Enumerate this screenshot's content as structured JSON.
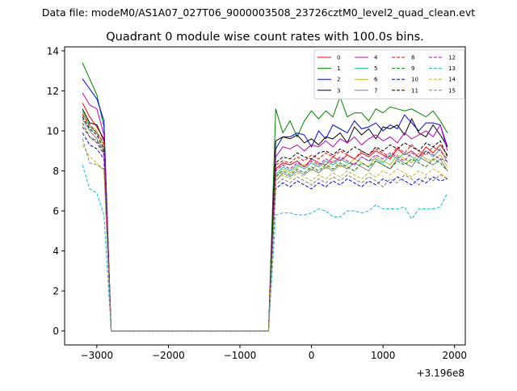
{
  "suptitle": "Data file: modeM0/AS1A07_027T06_9000003508_23726cztM0_level2_quad_clean.evt",
  "chart_data": {
    "type": "line",
    "title": "Quadrant 0 module wise count rates with 100.0s bins.",
    "xlabel": "",
    "ylabel": "",
    "x_offset_label": "+3.196e8",
    "x_offset": 319600000,
    "xlim": [
      -3450,
      2150
    ],
    "ylim": [
      -0.7,
      14.2
    ],
    "xticks": [
      -3000,
      -2000,
      -1000,
      0,
      1000,
      2000
    ],
    "xtick_labels": [
      "−3000",
      "−2000",
      "−1000",
      "0",
      "1000",
      "2000"
    ],
    "yticks": [
      0,
      2,
      4,
      6,
      8,
      10,
      12,
      14
    ],
    "ytick_labels": [
      "0",
      "2",
      "4",
      "6",
      "8",
      "10",
      "12",
      "14"
    ],
    "grid": false,
    "legend": {
      "placement": "top-right",
      "columns": 4
    },
    "x": [
      -3200,
      -3100,
      -3000,
      -2900,
      -2800,
      -2700,
      -2600,
      -2500,
      -2400,
      -2300,
      -2200,
      -2100,
      -2000,
      -1900,
      -1800,
      -1700,
      -1600,
      -1500,
      -1400,
      -1300,
      -1200,
      -1100,
      -1000,
      -900,
      -800,
      -700,
      -600,
      -500,
      -400,
      -300,
      -200,
      -100,
      0,
      100,
      200,
      300,
      400,
      500,
      600,
      700,
      800,
      900,
      1000,
      1100,
      1200,
      1300,
      1400,
      1500,
      1600,
      1700,
      1800,
      1900
    ],
    "series": [
      {
        "name": "0",
        "color": "#ff0000",
        "dash": "solid",
        "values": [
          11.4,
          10.7,
          10.2,
          9.6,
          0,
          0,
          0,
          0,
          0,
          0,
          0,
          0,
          0,
          0,
          0,
          0,
          0,
          0,
          0,
          0,
          0,
          0,
          0,
          0,
          0,
          0,
          0,
          8.1,
          8.4,
          8.3,
          8.5,
          8.2,
          8.6,
          8.4,
          8.3,
          8.7,
          8.5,
          8.8,
          8.6,
          8.9,
          8.7,
          9.0,
          8.8,
          8.6,
          9.1,
          8.8,
          9.0,
          8.7,
          9.2,
          8.9,
          9.3,
          8.8
        ]
      },
      {
        "name": "1",
        "color": "#008000",
        "dash": "solid",
        "values": [
          13.4,
          12.6,
          11.8,
          10.2,
          0,
          0,
          0,
          0,
          0,
          0,
          0,
          0,
          0,
          0,
          0,
          0,
          0,
          0,
          0,
          0,
          0,
          0,
          0,
          0,
          0,
          0,
          0,
          11.1,
          9.9,
          10.5,
          9.7,
          10.5,
          11.0,
          10.6,
          11.0,
          10.7,
          11.7,
          10.7,
          10.9,
          10.9,
          10.5,
          11.1,
          10.9,
          11.2,
          11.1,
          11.0,
          11.1,
          10.9,
          10.7,
          11.0,
          10.5,
          9.9
        ]
      },
      {
        "name": "2",
        "color": "#0000ff",
        "dash": "solid",
        "values": [
          12.6,
          12.1,
          11.6,
          10.5,
          0,
          0,
          0,
          0,
          0,
          0,
          0,
          0,
          0,
          0,
          0,
          0,
          0,
          0,
          0,
          0,
          0,
          0,
          0,
          0,
          0,
          0,
          0,
          9.1,
          9.7,
          9.7,
          9.9,
          9.8,
          9.2,
          10.0,
          9.6,
          10.3,
          10.1,
          9.9,
          10.5,
          10.1,
          10.2,
          10.4,
          10.0,
          10.3,
          10.1,
          10.8,
          10.4,
          10.0,
          10.4,
          10.4,
          10.3,
          9.2
        ]
      },
      {
        "name": "3",
        "color": "#000000",
        "dash": "solid",
        "values": [
          11.1,
          10.4,
          10.3,
          9.5,
          0,
          0,
          0,
          0,
          0,
          0,
          0,
          0,
          0,
          0,
          0,
          0,
          0,
          0,
          0,
          0,
          0,
          0,
          0,
          0,
          0,
          0,
          0,
          9.5,
          9.7,
          9.6,
          9.8,
          9.4,
          9.6,
          9.3,
          9.7,
          9.6,
          9.9,
          9.4,
          10.2,
          9.8,
          10.1,
          9.6,
          10.2,
          10.1,
          10.3,
          9.8,
          10.6,
          9.9,
          9.7,
          10.3,
          9.8,
          9.2
        ]
      },
      {
        "name": "4",
        "color": "#bf00bf",
        "dash": "solid",
        "values": [
          11.9,
          11.3,
          11.1,
          9.8,
          0,
          0,
          0,
          0,
          0,
          0,
          0,
          0,
          0,
          0,
          0,
          0,
          0,
          0,
          0,
          0,
          0,
          0,
          0,
          0,
          0,
          0,
          0,
          8.7,
          9.2,
          9.1,
          9.3,
          9.0,
          9.3,
          9.2,
          9.5,
          9.2,
          9.6,
          9.4,
          9.7,
          9.3,
          9.6,
          9.8,
          9.5,
          9.7,
          9.4,
          9.9,
          9.6,
          9.8,
          10.0,
          9.7,
          10.3,
          9.0
        ]
      },
      {
        "name": "5",
        "color": "#1abc9c",
        "dash": "solid",
        "values": [
          10.9,
          10.2,
          9.9,
          9.3,
          0,
          0,
          0,
          0,
          0,
          0,
          0,
          0,
          0,
          0,
          0,
          0,
          0,
          0,
          0,
          0,
          0,
          0,
          0,
          0,
          0,
          0,
          0,
          7.8,
          8.2,
          8.0,
          8.3,
          8.1,
          8.4,
          8.2,
          8.5,
          8.3,
          8.6,
          8.4,
          8.3,
          8.7,
          8.5,
          8.6,
          8.4,
          8.8,
          8.6,
          8.9,
          8.7,
          8.5,
          9.0,
          8.7,
          9.1,
          8.4
        ]
      },
      {
        "name": "6",
        "color": "#bcbd22",
        "dash": "solid",
        "values": [
          11.0,
          10.3,
          10.0,
          9.2,
          0,
          0,
          0,
          0,
          0,
          0,
          0,
          0,
          0,
          0,
          0,
          0,
          0,
          0,
          0,
          0,
          0,
          0,
          0,
          0,
          0,
          0,
          0,
          7.7,
          8.1,
          7.9,
          8.2,
          8.3,
          8.0,
          8.4,
          8.1,
          8.5,
          8.2,
          8.3,
          8.6,
          8.4,
          8.2,
          8.7,
          8.5,
          8.3,
          8.8,
          8.6,
          8.4,
          8.9,
          8.6,
          8.5,
          8.8,
          8.2
        ]
      },
      {
        "name": "7",
        "color": "#808080",
        "dash": "solid",
        "values": [
          10.6,
          10.0,
          9.6,
          9.0,
          0,
          0,
          0,
          0,
          0,
          0,
          0,
          0,
          0,
          0,
          0,
          0,
          0,
          0,
          0,
          0,
          0,
          0,
          0,
          0,
          0,
          0,
          0,
          7.5,
          7.9,
          7.7,
          8.0,
          7.8,
          8.1,
          7.9,
          8.2,
          8.0,
          8.3,
          8.1,
          8.4,
          8.2,
          8.0,
          8.5,
          8.3,
          8.1,
          8.6,
          8.4,
          8.2,
          8.7,
          8.5,
          8.3,
          8.6,
          8.0
        ]
      },
      {
        "name": "8",
        "color": "#ff0000",
        "dash": "dashed",
        "values": [
          10.8,
          10.3,
          9.9,
          9.4,
          0,
          0,
          0,
          0,
          0,
          0,
          0,
          0,
          0,
          0,
          0,
          0,
          0,
          0,
          0,
          0,
          0,
          0,
          0,
          0,
          0,
          0,
          0,
          8.3,
          8.5,
          8.4,
          8.7,
          8.5,
          8.8,
          8.6,
          8.9,
          8.7,
          9.0,
          8.8,
          8.6,
          9.0,
          8.8,
          9.1,
          8.9,
          8.7,
          9.2,
          8.9,
          9.3,
          9.0,
          8.8,
          9.2,
          9.0,
          8.6
        ]
      },
      {
        "name": "9",
        "color": "#008000",
        "dash": "dashed",
        "values": [
          10.4,
          9.7,
          9.5,
          8.9,
          0,
          0,
          0,
          0,
          0,
          0,
          0,
          0,
          0,
          0,
          0,
          0,
          0,
          0,
          0,
          0,
          0,
          0,
          0,
          0,
          0,
          0,
          0,
          7.7,
          8.0,
          7.8,
          8.1,
          7.9,
          8.2,
          8.0,
          8.3,
          8.1,
          8.4,
          8.2,
          8.0,
          8.4,
          8.2,
          8.5,
          8.3,
          8.1,
          8.5,
          8.3,
          8.6,
          8.4,
          8.2,
          8.6,
          8.4,
          8.0
        ]
      },
      {
        "name": "10",
        "color": "#0000ff",
        "dash": "dashed",
        "values": [
          9.9,
          9.3,
          9.1,
          8.6,
          0,
          0,
          0,
          0,
          0,
          0,
          0,
          0,
          0,
          0,
          0,
          0,
          0,
          0,
          0,
          0,
          0,
          0,
          0,
          0,
          0,
          0,
          0,
          7.1,
          7.4,
          7.2,
          7.5,
          7.3,
          7.1,
          7.4,
          7.2,
          7.5,
          7.3,
          7.6,
          7.4,
          7.2,
          7.5,
          7.3,
          7.6,
          7.4,
          7.7,
          7.5,
          7.3,
          7.6,
          7.4,
          7.7,
          7.5,
          7.6
        ]
      },
      {
        "name": "11",
        "color": "#000000",
        "dash": "dashed",
        "values": [
          10.7,
          10.1,
          9.8,
          9.1,
          0,
          0,
          0,
          0,
          0,
          0,
          0,
          0,
          0,
          0,
          0,
          0,
          0,
          0,
          0,
          0,
          0,
          0,
          0,
          0,
          0,
          0,
          0,
          8.4,
          8.7,
          8.6,
          8.9,
          8.7,
          8.6,
          8.9,
          9.0,
          8.8,
          9.1,
          8.9,
          9.2,
          9.0,
          8.8,
          9.2,
          9.0,
          9.3,
          9.1,
          9.4,
          9.2,
          9.0,
          9.4,
          9.2,
          9.5,
          8.7
        ]
      },
      {
        "name": "12",
        "color": "#bf00bf",
        "dash": "dashed",
        "values": [
          10.2,
          9.7,
          9.4,
          8.8,
          0,
          0,
          0,
          0,
          0,
          0,
          0,
          0,
          0,
          0,
          0,
          0,
          0,
          0,
          0,
          0,
          0,
          0,
          0,
          0,
          0,
          0,
          0,
          8.0,
          8.3,
          8.1,
          8.4,
          8.2,
          8.5,
          8.3,
          8.6,
          8.4,
          8.7,
          8.5,
          8.3,
          8.7,
          8.5,
          8.8,
          8.6,
          8.9,
          8.7,
          8.5,
          8.9,
          8.7,
          9.0,
          8.8,
          8.6,
          8.5
        ]
      },
      {
        "name": "13",
        "color": "#17becf",
        "dash": "dashed",
        "values": [
          8.3,
          7.1,
          6.9,
          5.8,
          0,
          0,
          0,
          0,
          0,
          0,
          0,
          0,
          0,
          0,
          0,
          0,
          0,
          0,
          0,
          0,
          0,
          0,
          0,
          0,
          0,
          0,
          0,
          5.8,
          5.9,
          5.9,
          5.8,
          5.8,
          5.9,
          6.1,
          6.0,
          5.7,
          5.7,
          6.0,
          6.0,
          5.9,
          6.0,
          6.3,
          6.1,
          6.1,
          6.1,
          6.2,
          5.6,
          6.1,
          6.1,
          6.1,
          6.2,
          6.9
        ]
      },
      {
        "name": "14",
        "color": "#bcbd22",
        "dash": "dashed",
        "values": [
          9.3,
          8.7,
          8.4,
          8.0,
          0,
          0,
          0,
          0,
          0,
          0,
          0,
          0,
          0,
          0,
          0,
          0,
          0,
          0,
          0,
          0,
          0,
          0,
          0,
          0,
          0,
          0,
          0,
          7.5,
          7.8,
          7.6,
          7.9,
          7.7,
          7.5,
          7.8,
          7.6,
          7.9,
          7.7,
          8.0,
          7.8,
          7.6,
          7.9,
          7.7,
          8.0,
          7.8,
          8.1,
          7.9,
          7.7,
          8.0,
          7.8,
          8.1,
          7.9,
          7.6
        ]
      },
      {
        "name": "15",
        "color": "#808080",
        "dash": "dashed",
        "values": [
          9.6,
          8.4,
          8.3,
          8.1,
          0,
          0,
          0,
          0,
          0,
          0,
          0,
          0,
          0,
          0,
          0,
          0,
          0,
          0,
          0,
          0,
          0,
          0,
          0,
          0,
          0,
          0,
          0,
          7.3,
          7.6,
          7.4,
          7.7,
          7.5,
          7.3,
          7.6,
          7.4,
          7.7,
          7.5,
          7.8,
          7.6,
          7.4,
          7.7,
          7.5,
          7.2,
          7.6,
          7.4,
          7.8,
          7.6,
          7.3,
          7.7,
          7.5,
          7.8,
          7.6
        ]
      }
    ]
  }
}
